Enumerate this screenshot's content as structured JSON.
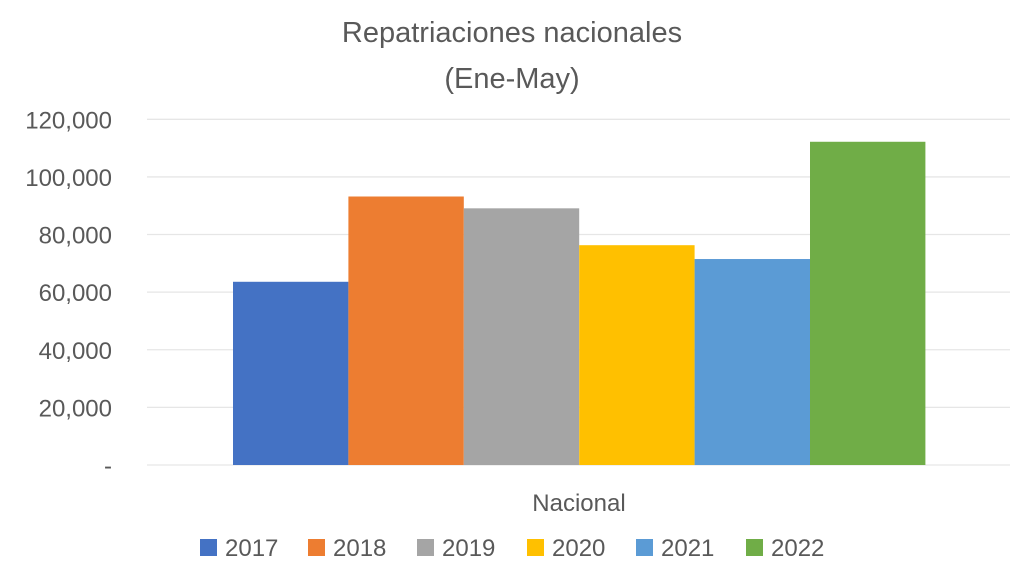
{
  "chart_data": {
    "type": "bar",
    "title": "Repatriaciones nacionales",
    "subtitle": "(Ene-May)",
    "categories": [
      "Nacional"
    ],
    "series": [
      {
        "name": "2017",
        "values": [
          63600
        ],
        "color": "#4472C4"
      },
      {
        "name": "2018",
        "values": [
          93200
        ],
        "color": "#ED7D31"
      },
      {
        "name": "2019",
        "values": [
          89100
        ],
        "color": "#A5A5A5"
      },
      {
        "name": "2020",
        "values": [
          76300
        ],
        "color": "#FFC000"
      },
      {
        "name": "2021",
        "values": [
          71500
        ],
        "color": "#5B9BD5"
      },
      {
        "name": "2022",
        "values": [
          112200
        ],
        "color": "#70AD47"
      }
    ],
    "ylim": [
      0,
      120000
    ],
    "yticks": [
      0,
      20000,
      40000,
      60000,
      80000,
      100000,
      120000
    ],
    "ytick_labels": [
      "-",
      "20,000",
      "40,000",
      "60,000",
      "80,000",
      "100,000",
      "120,000"
    ],
    "xlabel": "",
    "ylabel": "",
    "grid": true,
    "legend_position": "bottom"
  }
}
